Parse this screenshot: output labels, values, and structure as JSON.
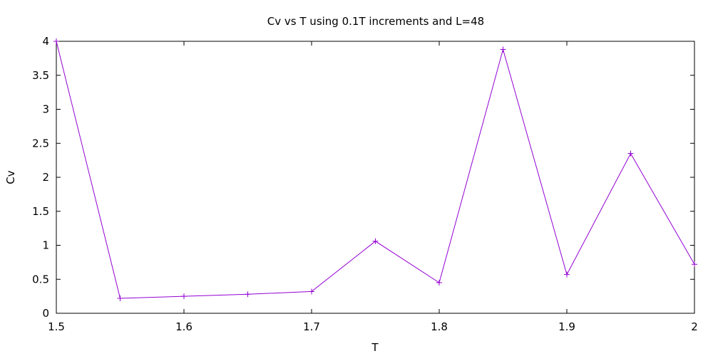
{
  "chart_data": {
    "type": "line",
    "title": "Cv vs T using 0.1T increments and L=48",
    "xlabel": "T",
    "ylabel": "Cv",
    "xlim": [
      1.5,
      2.0
    ],
    "ylim": [
      0,
      4
    ],
    "x_ticks": [
      "1.5",
      "1.6",
      "1.7",
      "1.8",
      "1.9",
      "2"
    ],
    "y_ticks": [
      "0",
      "0.5",
      "1",
      "1.5",
      "2",
      "2.5",
      "3",
      "3.5",
      "4"
    ],
    "grid": false,
    "legend": "none",
    "marker": "plus",
    "series": [
      {
        "color": "#9400d3",
        "x": [
          1.5,
          1.55,
          1.6,
          1.65,
          1.7,
          1.75,
          1.8,
          1.85,
          1.9,
          1.95,
          2.0
        ],
        "y": [
          4.0,
          0.22,
          0.25,
          0.28,
          0.32,
          1.06,
          0.45,
          3.88,
          0.57,
          2.35,
          0.72
        ]
      }
    ]
  }
}
